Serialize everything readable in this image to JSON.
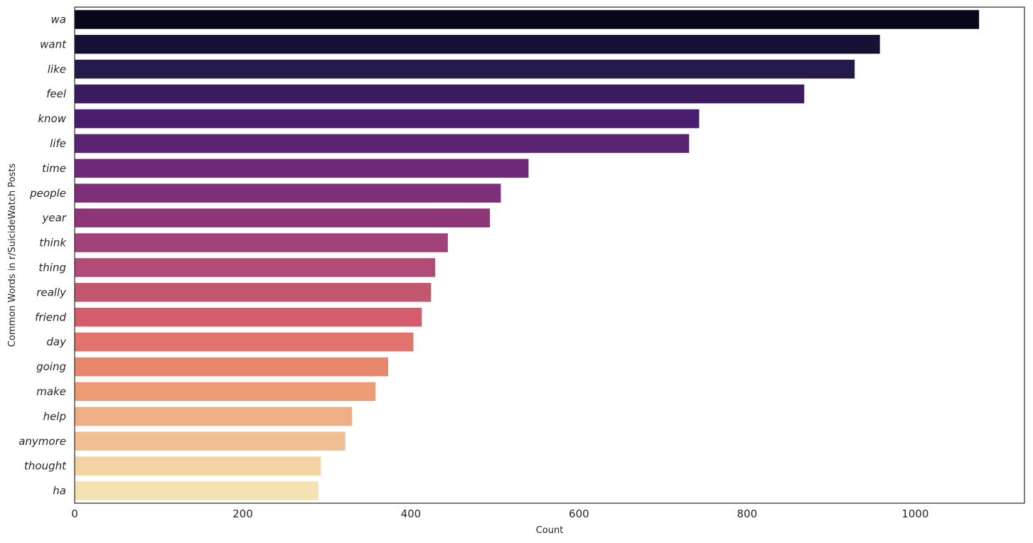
{
  "chart_data": {
    "type": "bar",
    "orientation": "horizontal",
    "categories": [
      "wa",
      "want",
      "like",
      "feel",
      "know",
      "life",
      "time",
      "people",
      "year",
      "think",
      "thing",
      "really",
      "friend",
      "day",
      "going",
      "make",
      "help",
      "anymore",
      "thought",
      "ha"
    ],
    "values": [
      1076,
      958,
      928,
      868,
      743,
      731,
      540,
      507,
      494,
      444,
      429,
      424,
      413,
      403,
      373,
      358,
      330,
      322,
      293,
      290
    ],
    "xlabel": "Count",
    "ylabel": "Common Words in r/SuicideWatch Posts",
    "xlim": [
      0,
      1130
    ],
    "xticks": [
      0,
      200,
      400,
      600,
      800,
      1000
    ],
    "grid": false,
    "legend": "none",
    "colors": [
      "#07071a",
      "#161235",
      "#251a49",
      "#3b1a5f",
      "#481c6e",
      "#5a2371",
      "#6e2a78",
      "#7e2f79",
      "#8e3478",
      "#a3417a",
      "#b24b78",
      "#c2566f",
      "#d55c6c",
      "#e1736c",
      "#e8876d",
      "#ec9b75",
      "#efae85",
      "#f1be91",
      "#f3d3a2",
      "#f5e2b3"
    ]
  }
}
